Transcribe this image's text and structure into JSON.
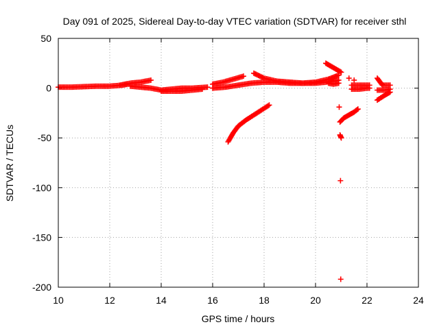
{
  "chart_data": {
    "type": "scatter",
    "title": "Day 091 of 2025, Sidereal Day-to-day VTEC variation (SDTVAR) for receiver sthl",
    "xlabel": "GPS time / hours",
    "ylabel": "SDTVAR / TECUs",
    "xlim": [
      10,
      24
    ],
    "ylim": [
      -200,
      50
    ],
    "x_ticks": [
      10,
      12,
      14,
      16,
      18,
      20,
      22,
      24
    ],
    "y_ticks": [
      50,
      0,
      -50,
      -100,
      -150,
      -200
    ],
    "grid": true,
    "color": "#ff0000",
    "marker": "plus",
    "segments": [
      {
        "x": [
          10.0,
          10.5,
          11.0,
          11.5,
          12.0,
          12.5,
          12.7
        ],
        "y": [
          1,
          1,
          1.5,
          2,
          2,
          3,
          4
        ]
      },
      {
        "x": [
          12.4,
          12.8,
          13.2,
          13.6
        ],
        "y": [
          3,
          5,
          6,
          8
        ]
      },
      {
        "x": [
          12.8,
          13.2,
          13.6,
          14.0,
          14.4,
          14.8,
          15.2,
          15.8
        ],
        "y": [
          2,
          1,
          0,
          -2,
          -1,
          0,
          0,
          1
        ]
      },
      {
        "x": [
          14.0,
          14.4,
          14.8,
          15.2,
          15.6
        ],
        "y": [
          -3,
          -3,
          -3,
          -2,
          -1
        ]
      },
      {
        "x": [
          16.0,
          16.4,
          16.8,
          17.2
        ],
        "y": [
          4,
          6,
          9,
          12
        ]
      },
      {
        "x": [
          16.0,
          16.5,
          17.0,
          17.5,
          18.0,
          18.5,
          19.0,
          19.5,
          20.0,
          20.4,
          20.9
        ],
        "y": [
          0,
          1,
          3,
          5,
          6,
          6,
          5,
          5,
          5,
          6,
          8
        ]
      },
      {
        "x": [
          17.6,
          18.0,
          18.5,
          19.0,
          19.5,
          20.0,
          20.5,
          20.9
        ],
        "y": [
          15,
          10,
          7,
          6,
          5,
          6,
          9,
          13
        ]
      },
      {
        "x": [
          16.6,
          16.8,
          17.0,
          17.3,
          17.6,
          17.9,
          18.2
        ],
        "y": [
          -54,
          -45,
          -38,
          -32,
          -27,
          -22,
          -17
        ]
      },
      {
        "x": [
          20.4,
          20.6,
          20.8,
          21.0
        ],
        "y": [
          25,
          22,
          19,
          16
        ]
      },
      {
        "x": [
          20.5,
          20.7,
          20.9
        ],
        "y": [
          5,
          4,
          5
        ]
      },
      {
        "x": [
          20.95,
          21.1,
          21.3,
          21.5,
          21.65
        ],
        "y": [
          -34,
          -30,
          -27,
          -24,
          -21
        ]
      },
      {
        "x": [
          20.92
        ],
        "y": [
          -19
        ]
      },
      {
        "x": [
          20.95,
          21.0
        ],
        "y": [
          -47,
          -50
        ]
      },
      {
        "x": [
          20.97
        ],
        "y": [
          -93
        ]
      },
      {
        "x": [
          20.98
        ],
        "y": [
          -192
        ]
      },
      {
        "x": [
          21.3
        ],
        "y": [
          10
        ]
      },
      {
        "x": [
          21.5
        ],
        "y": [
          8
        ]
      },
      {
        "x": [
          21.4,
          21.7,
          22.0,
          22.1
        ],
        "y": [
          3,
          3,
          3,
          3
        ]
      },
      {
        "x": [
          21.4,
          21.7,
          22.0,
          22.1
        ],
        "y": [
          -1,
          -1,
          0,
          0
        ]
      },
      {
        "x": [
          22.4,
          22.6,
          22.9
        ],
        "y": [
          10,
          3,
          3
        ]
      },
      {
        "x": [
          22.4,
          22.7,
          22.9
        ],
        "y": [
          -12,
          -7,
          -4
        ]
      },
      {
        "x": [
          22.4,
          22.7,
          22.9
        ],
        "y": [
          -2,
          -2,
          -1
        ]
      }
    ]
  }
}
